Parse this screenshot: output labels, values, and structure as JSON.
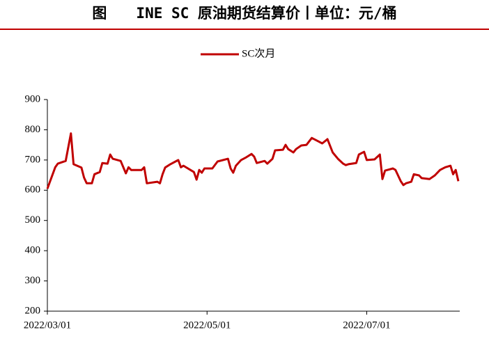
{
  "chart_data": {
    "type": "line",
    "title": "图　　INE SC 原油期货结算价丨单位：元/桶",
    "x": [
      "2022/03/01",
      "2022/03/04",
      "2022/03/05",
      "2022/03/08",
      "2022/03/10",
      "2022/03/11",
      "2022/03/14",
      "2022/03/15",
      "2022/03/16",
      "2022/03/18",
      "2022/03/19",
      "2022/03/21",
      "2022/03/22",
      "2022/03/24",
      "2022/03/25",
      "2022/03/26",
      "2022/03/29",
      "2022/03/31",
      "2022/04/01",
      "2022/04/02",
      "2022/04/06",
      "2022/04/07",
      "2022/04/08",
      "2022/04/12",
      "2022/04/13",
      "2022/04/14",
      "2022/04/15",
      "2022/04/17",
      "2022/04/20",
      "2022/04/21",
      "2022/04/22",
      "2022/04/26",
      "2022/04/27",
      "2022/04/28",
      "2022/04/29",
      "2022/04/30",
      "2022/05/03",
      "2022/05/05",
      "2022/05/09",
      "2022/05/10",
      "2022/05/11",
      "2022/05/12",
      "2022/05/14",
      "2022/05/16",
      "2022/05/18",
      "2022/05/19",
      "2022/05/20",
      "2022/05/23",
      "2022/05/24",
      "2022/05/26",
      "2022/05/27",
      "2022/05/30",
      "2022/05/31",
      "2022/06/01",
      "2022/06/03",
      "2022/06/04",
      "2022/06/06",
      "2022/06/08",
      "2022/06/10",
      "2022/06/12",
      "2022/06/14",
      "2022/06/16",
      "2022/06/18",
      "2022/06/20",
      "2022/06/22",
      "2022/06/23",
      "2022/06/24",
      "2022/06/27",
      "2022/06/28",
      "2022/06/30",
      "2022/07/01",
      "2022/07/04",
      "2022/07/06",
      "2022/07/07",
      "2022/07/08",
      "2022/07/11",
      "2022/07/12",
      "2022/07/14",
      "2022/07/15",
      "2022/07/16",
      "2022/07/18",
      "2022/07/19",
      "2022/07/21",
      "2022/07/22",
      "2022/07/25",
      "2022/07/27",
      "2022/07/29",
      "2022/07/31",
      "2022/08/02",
      "2022/08/03",
      "2022/08/04",
      "2022/08/05"
    ],
    "series": [
      {
        "name": "SC次月",
        "color": "#c00000",
        "values": [
          605,
          676,
          688,
          697,
          788,
          686,
          675,
          642,
          623,
          623,
          653,
          660,
          690,
          688,
          718,
          704,
          697,
          656,
          676,
          667,
          667,
          676,
          623,
          628,
          623,
          653,
          675,
          686,
          700,
          676,
          681,
          660,
          635,
          667,
          658,
          672,
          672,
          695,
          704,
          672,
          658,
          681,
          700,
          709,
          720,
          711,
          690,
          697,
          688,
          704,
          732,
          734,
          750,
          736,
          725,
          736,
          748,
          750,
          773,
          764,
          755,
          769,
          725,
          704,
          688,
          683,
          686,
          690,
          718,
          727,
          700,
          702,
          718,
          637,
          665,
          672,
          667,
          630,
          617,
          623,
          628,
          653,
          649,
          640,
          637,
          649,
          667,
          676,
          681,
          653,
          667,
          630
        ]
      }
    ],
    "xlim": [
      "2022/03/01",
      "2022/08/05"
    ],
    "xticks": [
      "2022/03/01",
      "2022/05/01",
      "2022/07/01"
    ],
    "ylim": [
      200,
      900
    ],
    "yticks": [
      200,
      300,
      400,
      500,
      600,
      700,
      800,
      900
    ],
    "legend": "top"
  }
}
